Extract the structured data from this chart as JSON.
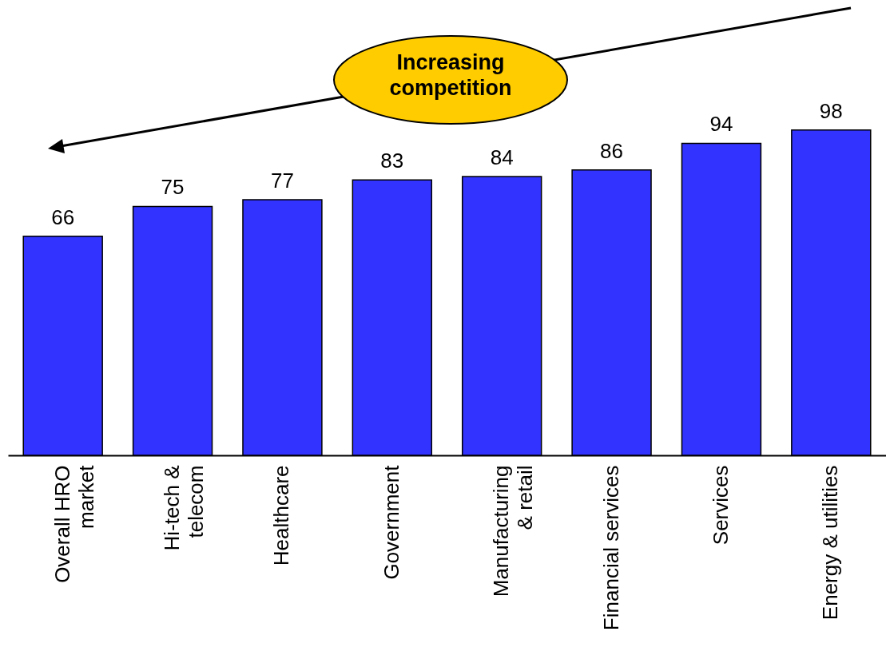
{
  "chart_data": {
    "type": "bar",
    "categories": [
      "Overall HRO\nmarket",
      "Hi-tech &\ntelecom",
      "Healthcare",
      "Government",
      "Manufacturing\n& retail",
      "Financial services",
      "Services",
      "Energy & utilities"
    ],
    "values": [
      66,
      75,
      77,
      83,
      84,
      86,
      94,
      98
    ],
    "color": "#3333ff",
    "data_labels": true,
    "annotations": [
      "Increasing competition"
    ]
  }
}
